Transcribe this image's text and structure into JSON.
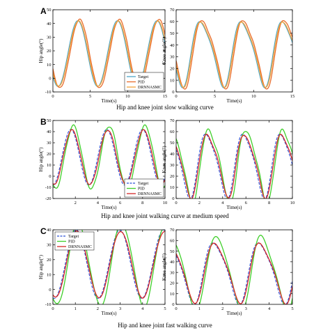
{
  "panels": [
    {
      "label": "A",
      "caption": "Hip and knee joint slow walking curve",
      "legend_position": "bottom-right-left-chart",
      "charts": [
        {
          "type": "line",
          "ylabel": "Hip angle(°)",
          "xlabel": "Time(s)",
          "xlim": [
            0,
            15
          ],
          "ylim": [
            -10,
            50
          ],
          "xticks": [
            0,
            5,
            10,
            15
          ],
          "yticks": [
            -10,
            0,
            10,
            20,
            30,
            40,
            50
          ],
          "grid": false,
          "curve": {
            "kind": "sin",
            "period": 5.3,
            "phase": 2.0,
            "offset": 18,
            "amp": 24
          },
          "series": [
            {
              "name": "Target",
              "color": "#4aa6c8",
              "style": "solid",
              "dev": 0.0,
              "lag": 0.0
            },
            {
              "name": "PID",
              "color": "#e86b2a",
              "style": "solid",
              "dev": 1.0,
              "lag": 0.05
            },
            {
              "name": "DRNNASMC",
              "color": "#f2a23a",
              "style": "solid",
              "dev": 0.5,
              "lag": 0.02
            }
          ]
        },
        {
          "type": "line",
          "ylabel": "Knee angle(°)",
          "xlabel": "Time(s)",
          "xlim": [
            0,
            15
          ],
          "ylim": [
            0,
            70
          ],
          "xticks": [
            0,
            5,
            10,
            15
          ],
          "yticks": [
            0,
            10,
            20,
            30,
            40,
            50,
            60,
            70
          ],
          "grid": false,
          "curve": {
            "kind": "knee",
            "period": 5.3,
            "phase": 2.0,
            "offset": 34,
            "amp": 27
          },
          "series": [
            {
              "name": "Target",
              "color": "#4aa6c8",
              "style": "solid",
              "dev": 0.0,
              "lag": 0.0
            },
            {
              "name": "PID",
              "color": "#e86b2a",
              "style": "solid",
              "dev": 1.2,
              "lag": 0.05
            },
            {
              "name": "DRNNASMC",
              "color": "#f2a23a",
              "style": "solid",
              "dev": 0.6,
              "lag": 0.02
            }
          ]
        }
      ]
    },
    {
      "label": "B",
      "caption": "Hip and knee joint walking curve at medium speed",
      "legend_position": "bottom-right-left-chart",
      "charts": [
        {
          "type": "line",
          "ylabel": "Hip angle(°)",
          "xlabel": "Time(s)",
          "xlim": [
            0,
            10
          ],
          "ylim": [
            -20,
            50
          ],
          "xticks": [
            2,
            4,
            6,
            8,
            10
          ],
          "yticks": [
            -20,
            -10,
            0,
            10,
            20,
            30,
            40,
            50
          ],
          "grid": false,
          "curve": {
            "kind": "sin",
            "period": 3.2,
            "phase": 0.8,
            "offset": 17,
            "amp": 25
          },
          "series": [
            {
              "name": "Target",
              "color": "#2b4fd6",
              "style": "dashed",
              "dev": 0.0,
              "lag": 0.0
            },
            {
              "name": "PID",
              "color": "#3fcf2a",
              "style": "solid",
              "dev": 3.5,
              "lag": 0.08
            },
            {
              "name": "DRNNASMC",
              "color": "#d42525",
              "style": "solid",
              "dev": 1.5,
              "lag": 0.03
            }
          ]
        },
        {
          "type": "line",
          "ylabel": "Knee angle(°)",
          "xlabel": "Time(s)",
          "xlim": [
            0,
            10
          ],
          "ylim": [
            0,
            70
          ],
          "xticks": [
            0,
            2,
            4,
            6,
            8,
            10
          ],
          "yticks": [
            0,
            10,
            20,
            30,
            40,
            50,
            60,
            70
          ],
          "grid": false,
          "curve": {
            "kind": "knee",
            "period": 3.2,
            "phase": 1.9,
            "offset": 31,
            "amp": 28
          },
          "series": [
            {
              "name": "Target",
              "color": "#2b4fd6",
              "style": "dashed",
              "dev": 0.0,
              "lag": 0.0
            },
            {
              "name": "PID",
              "color": "#3fcf2a",
              "style": "solid",
              "dev": 4.0,
              "lag": 0.08
            },
            {
              "name": "DRNNASMC",
              "color": "#d42525",
              "style": "solid",
              "dev": 1.8,
              "lag": 0.03
            }
          ]
        }
      ]
    },
    {
      "label": "C",
      "caption": "Hip and knee joint fast walking curve",
      "legend_position": "top-left-left-chart",
      "charts": [
        {
          "type": "line",
          "ylabel": "Hip angle(°)",
          "xlabel": "Time(s)",
          "xlim": [
            0,
            5
          ],
          "ylim": [
            -10,
            40
          ],
          "xticks": [
            0,
            1,
            2,
            3,
            4,
            5
          ],
          "yticks": [
            -10,
            0,
            10,
            20,
            30,
            40
          ],
          "grid": false,
          "curve": {
            "kind": "sin",
            "period": 1.95,
            "phase": 0.55,
            "offset": 17,
            "amp": 23
          },
          "series": [
            {
              "name": "Target",
              "color": "#2b4fd6",
              "style": "dashed",
              "dev": 0.0,
              "lag": 0.0
            },
            {
              "name": "PID",
              "color": "#3fcf2a",
              "style": "solid",
              "dev": 5.0,
              "lag": 0.06
            },
            {
              "name": "DRNNASMC",
              "color": "#d42525",
              "style": "solid",
              "dev": 1.8,
              "lag": 0.02
            }
          ]
        },
        {
          "type": "line",
          "ylabel": "Knee angle(°)",
          "xlabel": "Time(s)",
          "xlim": [
            0,
            5
          ],
          "ylim": [
            0,
            70
          ],
          "xticks": [
            0,
            1,
            2,
            3,
            4,
            5
          ],
          "yticks": [
            0,
            10,
            20,
            30,
            40,
            50,
            60,
            70
          ],
          "grid": false,
          "curve": {
            "kind": "knee",
            "period": 1.95,
            "phase": 1.2,
            "offset": 31,
            "amp": 28
          },
          "series": [
            {
              "name": "Target",
              "color": "#2b4fd6",
              "style": "dashed",
              "dev": 0.0,
              "lag": 0.0
            },
            {
              "name": "PID",
              "color": "#3fcf2a",
              "style": "solid",
              "dev": 6.0,
              "lag": 0.06
            },
            {
              "name": "DRNNASMC",
              "color": "#d42525",
              "style": "solid",
              "dev": 2.0,
              "lag": 0.02
            }
          ]
        }
      ]
    }
  ]
}
